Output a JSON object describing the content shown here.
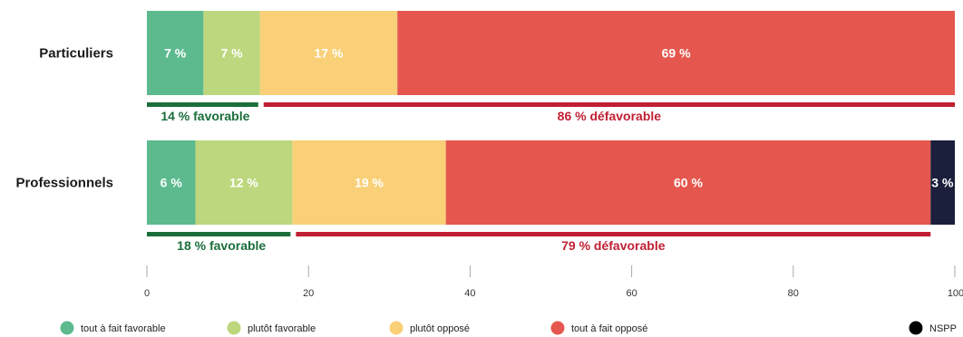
{
  "chart_data": {
    "type": "bar",
    "orientation": "horizontal",
    "stacked": true,
    "categories": [
      "Particuliers",
      "Professionnels"
    ],
    "series": [
      {
        "name": "tout à fait favorable",
        "color": "#5cba8e",
        "values": [
          7,
          6
        ],
        "labels": [
          "7 %",
          "6 %"
        ]
      },
      {
        "name": "plutôt favorable",
        "color": "#bcd77d",
        "values": [
          7,
          12
        ],
        "labels": [
          "7 %",
          "12 %"
        ]
      },
      {
        "name": "plutôt opposé",
        "color": "#f9d078",
        "values": [
          17,
          19
        ],
        "labels": [
          "17 %",
          "19 %"
        ]
      },
      {
        "name": "tout à fait opposé",
        "color": "#e5574e",
        "values": [
          69,
          60
        ],
        "labels": [
          "69 %",
          "60 %"
        ]
      },
      {
        "name": "NSPP",
        "color": "#1b1f3c",
        "values": [
          0,
          3
        ],
        "labels": [
          "",
          "3 %"
        ]
      }
    ],
    "summary": [
      {
        "favorable_value": 14,
        "favorable_label": "14 % favorable",
        "defavorable_value": 86,
        "defavorable_label": "86 % défavorable"
      },
      {
        "favorable_value": 18,
        "favorable_label": "18 %  favorable",
        "defavorable_value": 79,
        "defavorable_label": "79 % défavorable"
      }
    ],
    "summary_colors": {
      "favorable": "#1a6e3a",
      "defavorable": "#c11f33"
    },
    "xlim": [
      0,
      100
    ],
    "xticks": [
      0,
      20,
      40,
      60,
      80,
      100
    ],
    "legend_position": "bottom",
    "grid": false
  }
}
